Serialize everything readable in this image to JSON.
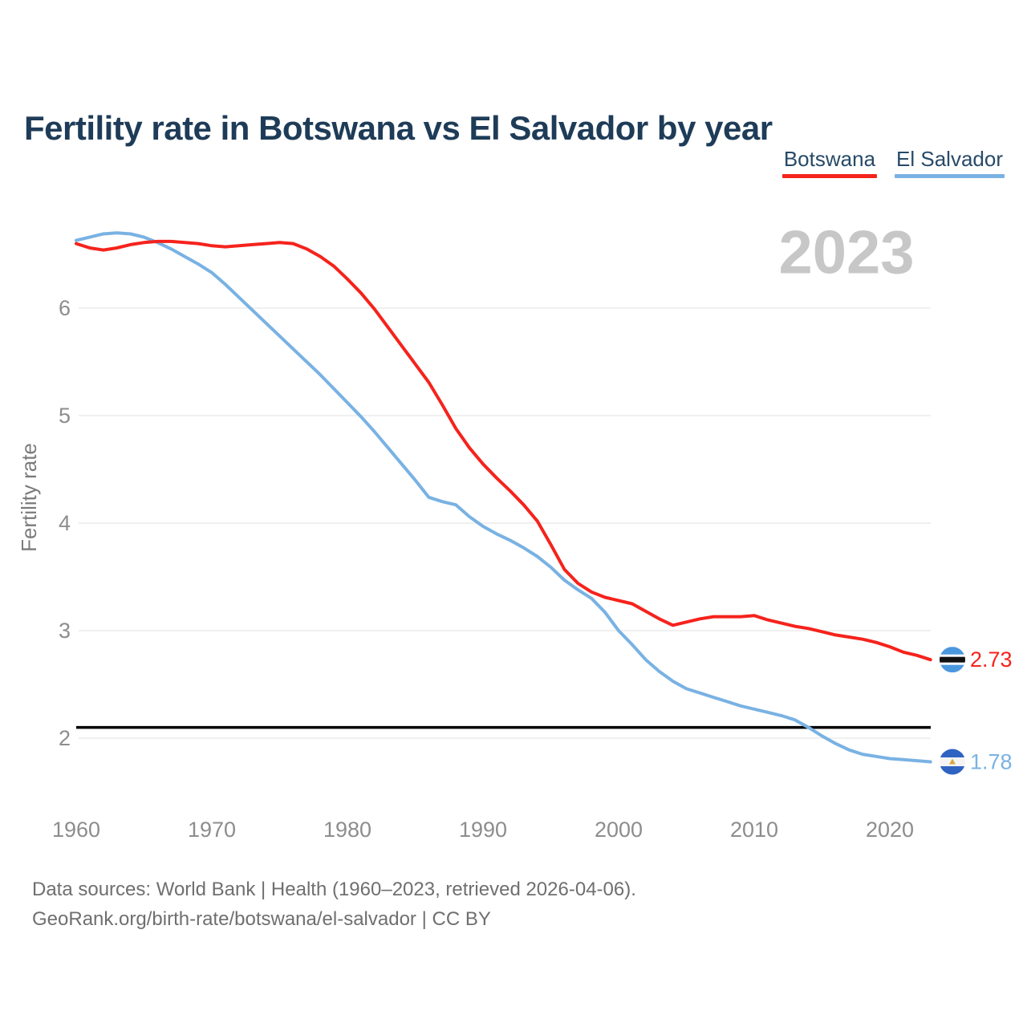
{
  "page": {
    "title": "Fertility rate in Botswana vs El Salvador by year"
  },
  "legend": {
    "items": [
      {
        "label": "Botswana",
        "color": "#f5231c"
      },
      {
        "label": "El Salvador",
        "color": "#79b2e3"
      }
    ]
  },
  "footer": {
    "line1": "Data sources: World Bank | Health (1960–2023, retrieved 2026-04-06).",
    "line2": "GeoRank.org/birth-rate/botswana/el-salvador | CC BY"
  },
  "chart_data": {
    "type": "line",
    "title": "Fertility rate in Botswana vs El Salvador by year",
    "xlabel": "",
    "ylabel": "Fertility rate",
    "watermark": "2023",
    "grid": "horizontal-only",
    "legend_position": "top-right",
    "xlim": [
      1960,
      2023
    ],
    "ylim": [
      1.7,
      6.8
    ],
    "x_ticks": [
      1960,
      1970,
      1980,
      1990,
      2000,
      2010,
      2020
    ],
    "y_ticks": [
      2,
      3,
      4,
      5,
      6
    ],
    "reference_line": {
      "value": 2.1,
      "color": "#000000"
    },
    "years": [
      1960,
      1961,
      1962,
      1963,
      1964,
      1965,
      1966,
      1967,
      1968,
      1969,
      1970,
      1971,
      1972,
      1973,
      1974,
      1975,
      1976,
      1977,
      1978,
      1979,
      1980,
      1981,
      1982,
      1983,
      1984,
      1985,
      1986,
      1987,
      1988,
      1989,
      1990,
      1991,
      1992,
      1993,
      1994,
      1995,
      1996,
      1997,
      1998,
      1999,
      2000,
      2001,
      2002,
      2003,
      2004,
      2005,
      2006,
      2007,
      2008,
      2009,
      2010,
      2011,
      2012,
      2013,
      2014,
      2015,
      2016,
      2017,
      2018,
      2019,
      2020,
      2021,
      2022,
      2023
    ],
    "series": [
      {
        "name": "Botswana",
        "color": "#f5231c",
        "end_label": "2.73",
        "flag": "botswana",
        "values": [
          6.6,
          6.56,
          6.54,
          6.56,
          6.59,
          6.61,
          6.62,
          6.62,
          6.61,
          6.6,
          6.58,
          6.57,
          6.58,
          6.59,
          6.6,
          6.61,
          6.6,
          6.55,
          6.48,
          6.39,
          6.27,
          6.14,
          5.99,
          5.82,
          5.65,
          5.48,
          5.31,
          5.1,
          4.88,
          4.7,
          4.55,
          4.42,
          4.3,
          4.17,
          4.02,
          3.8,
          3.57,
          3.44,
          3.36,
          3.31,
          3.28,
          3.25,
          3.18,
          3.11,
          3.05,
          3.08,
          3.11,
          3.13,
          3.13,
          3.13,
          3.14,
          3.1,
          3.07,
          3.04,
          3.02,
          2.99,
          2.96,
          2.94,
          2.92,
          2.89,
          2.85,
          2.8,
          2.77,
          2.73
        ]
      },
      {
        "name": "El Salvador",
        "color": "#79b2e3",
        "end_label": "1.78",
        "flag": "el-salvador",
        "values": [
          6.63,
          6.66,
          6.69,
          6.7,
          6.69,
          6.66,
          6.61,
          6.55,
          6.48,
          6.41,
          6.33,
          6.22,
          6.1,
          5.98,
          5.86,
          5.74,
          5.62,
          5.5,
          5.38,
          5.25,
          5.12,
          4.99,
          4.85,
          4.7,
          4.55,
          4.4,
          4.24,
          4.2,
          4.17,
          4.06,
          3.97,
          3.9,
          3.84,
          3.77,
          3.69,
          3.59,
          3.47,
          3.38,
          3.3,
          3.17,
          3.0,
          2.87,
          2.73,
          2.62,
          2.53,
          2.46,
          2.42,
          2.38,
          2.34,
          2.3,
          2.27,
          2.24,
          2.21,
          2.17,
          2.1,
          2.02,
          1.95,
          1.89,
          1.85,
          1.83,
          1.81,
          1.8,
          1.79,
          1.78
        ]
      }
    ]
  }
}
